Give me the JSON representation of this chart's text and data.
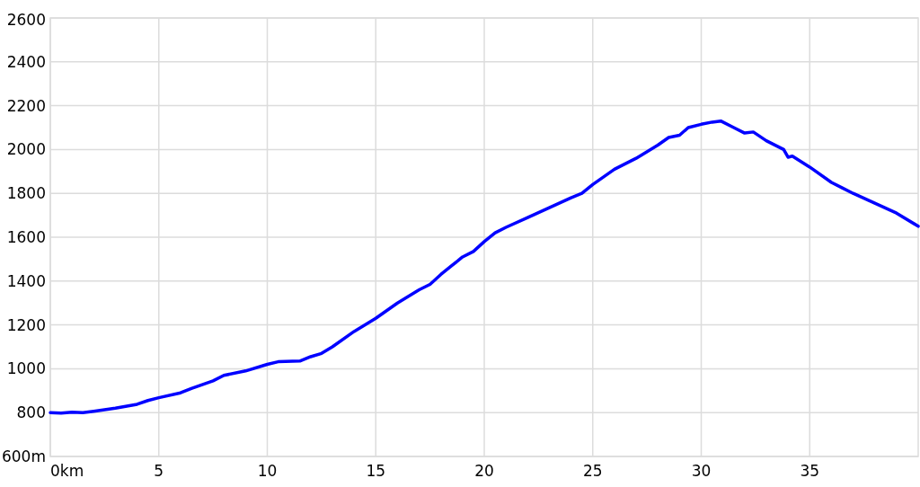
{
  "chart_data": {
    "type": "line",
    "x": [
      0,
      0.5,
      1,
      1.5,
      2,
      3,
      4,
      4.5,
      5,
      6,
      6.5,
      7.5,
      8,
      9,
      10,
      10.5,
      11.5,
      12,
      12.5,
      13,
      14,
      15,
      15.5,
      16,
      17,
      17.5,
      18,
      18.5,
      19,
      19.5,
      20,
      20.5,
      21,
      22,
      23,
      24,
      24.5,
      25,
      26,
      27,
      28,
      28.5,
      29,
      29.4,
      30,
      30.5,
      30.9,
      31.5,
      32,
      32.4,
      33,
      33.8,
      34,
      34.2,
      35,
      36,
      36.5,
      37,
      38,
      39,
      40
    ],
    "series": [
      {
        "color": "#0000ff",
        "values": [
          800,
          798,
          802,
          800,
          806,
          820,
          838,
          855,
          868,
          890,
          910,
          945,
          970,
          990,
          1020,
          1032,
          1035,
          1055,
          1070,
          1100,
          1170,
          1230,
          1265,
          1300,
          1360,
          1385,
          1430,
          1470,
          1510,
          1535,
          1580,
          1620,
          1645,
          1690,
          1735,
          1780,
          1800,
          1840,
          1910,
          1960,
          2020,
          2055,
          2065,
          2100,
          2115,
          2125,
          2130,
          2100,
          2075,
          2080,
          2040,
          2000,
          1965,
          1970,
          1920,
          1850,
          1825,
          1800,
          1755,
          1710,
          1650
        ]
      }
    ],
    "xlim": [
      0,
      40
    ],
    "xticks": [
      {
        "value": 0,
        "label": "0km"
      },
      5,
      10,
      15,
      20,
      25,
      30,
      35
    ],
    "ylim": [
      600,
      2600
    ],
    "yticks": [
      {
        "value": 600,
        "label": "600m"
      },
      800,
      1000,
      1200,
      1400,
      1600,
      1800,
      2000,
      2200,
      2400,
      2600
    ],
    "grid": true,
    "marker": "none",
    "line_style": "solid"
  }
}
